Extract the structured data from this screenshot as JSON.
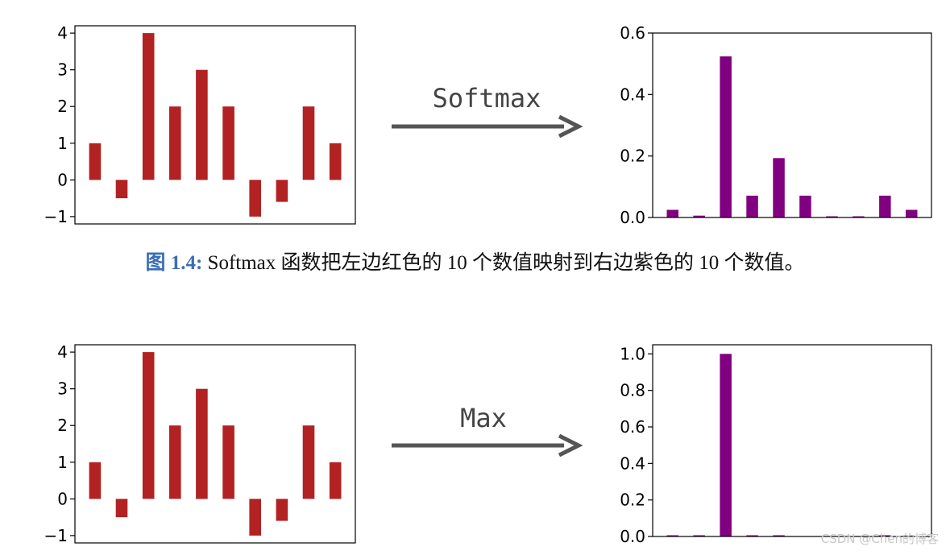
{
  "colors": {
    "input_bars": "#b22222",
    "output_bars": "#800080",
    "arrow": "#555555"
  },
  "caption": {
    "label": "图 1.4:",
    "text": "Softmax 函数把左边红色的 10 个数值映射到右边紫色的 10 个数值。"
  },
  "watermark": "CSDN @Chen的博客",
  "chart_data": [
    {
      "type": "bar",
      "role": "input",
      "title": "",
      "xlabel": "",
      "ylabel": "",
      "values": [
        1,
        -0.5,
        4,
        2,
        3,
        2,
        -1,
        -0.6,
        2,
        1
      ],
      "ylim": [
        -1.2,
        4.2
      ],
      "yticks": [
        -1,
        0,
        1,
        2,
        3,
        4
      ],
      "ytick_labels": [
        "−1",
        "0",
        "1",
        "2",
        "3",
        "4"
      ]
    },
    {
      "type": "bar",
      "role": "output",
      "title": "",
      "xlabel": "",
      "ylabel": "",
      "values": [
        0.025,
        0.006,
        0.524,
        0.071,
        0.193,
        0.071,
        0.003,
        0.004,
        0.071,
        0.025
      ],
      "ylim": [
        0,
        0.6
      ],
      "yticks": [
        0,
        0.2,
        0.4,
        0.6
      ],
      "ytick_labels": [
        "0.0",
        "0.2",
        "0.4",
        "0.6"
      ]
    },
    {
      "type": "bar",
      "role": "input",
      "title": "",
      "xlabel": "",
      "ylabel": "",
      "values": [
        1,
        -0.5,
        4,
        2,
        3,
        2,
        -1,
        -0.6,
        2,
        1
      ],
      "ylim": [
        -1.2,
        4.2
      ],
      "yticks": [
        -1,
        0,
        1,
        2,
        3,
        4
      ],
      "ytick_labels": [
        "−1",
        "0",
        "1",
        "2",
        "3",
        "4"
      ]
    },
    {
      "type": "bar",
      "role": "output",
      "title": "",
      "xlabel": "",
      "ylabel": "",
      "values": [
        0.006,
        0.006,
        1.0,
        0.006,
        0.006,
        0.0,
        0.0,
        0.0,
        0.006,
        0.0
      ],
      "ylim": [
        0,
        1.05
      ],
      "yticks": [
        0,
        0.2,
        0.4,
        0.6,
        0.8,
        1.0
      ],
      "ytick_labels": [
        "0.0",
        "0.2",
        "0.4",
        "0.6",
        "0.8",
        "1.0"
      ]
    }
  ],
  "operations": [
    {
      "label": "Softmax"
    },
    {
      "label": "Max"
    }
  ]
}
